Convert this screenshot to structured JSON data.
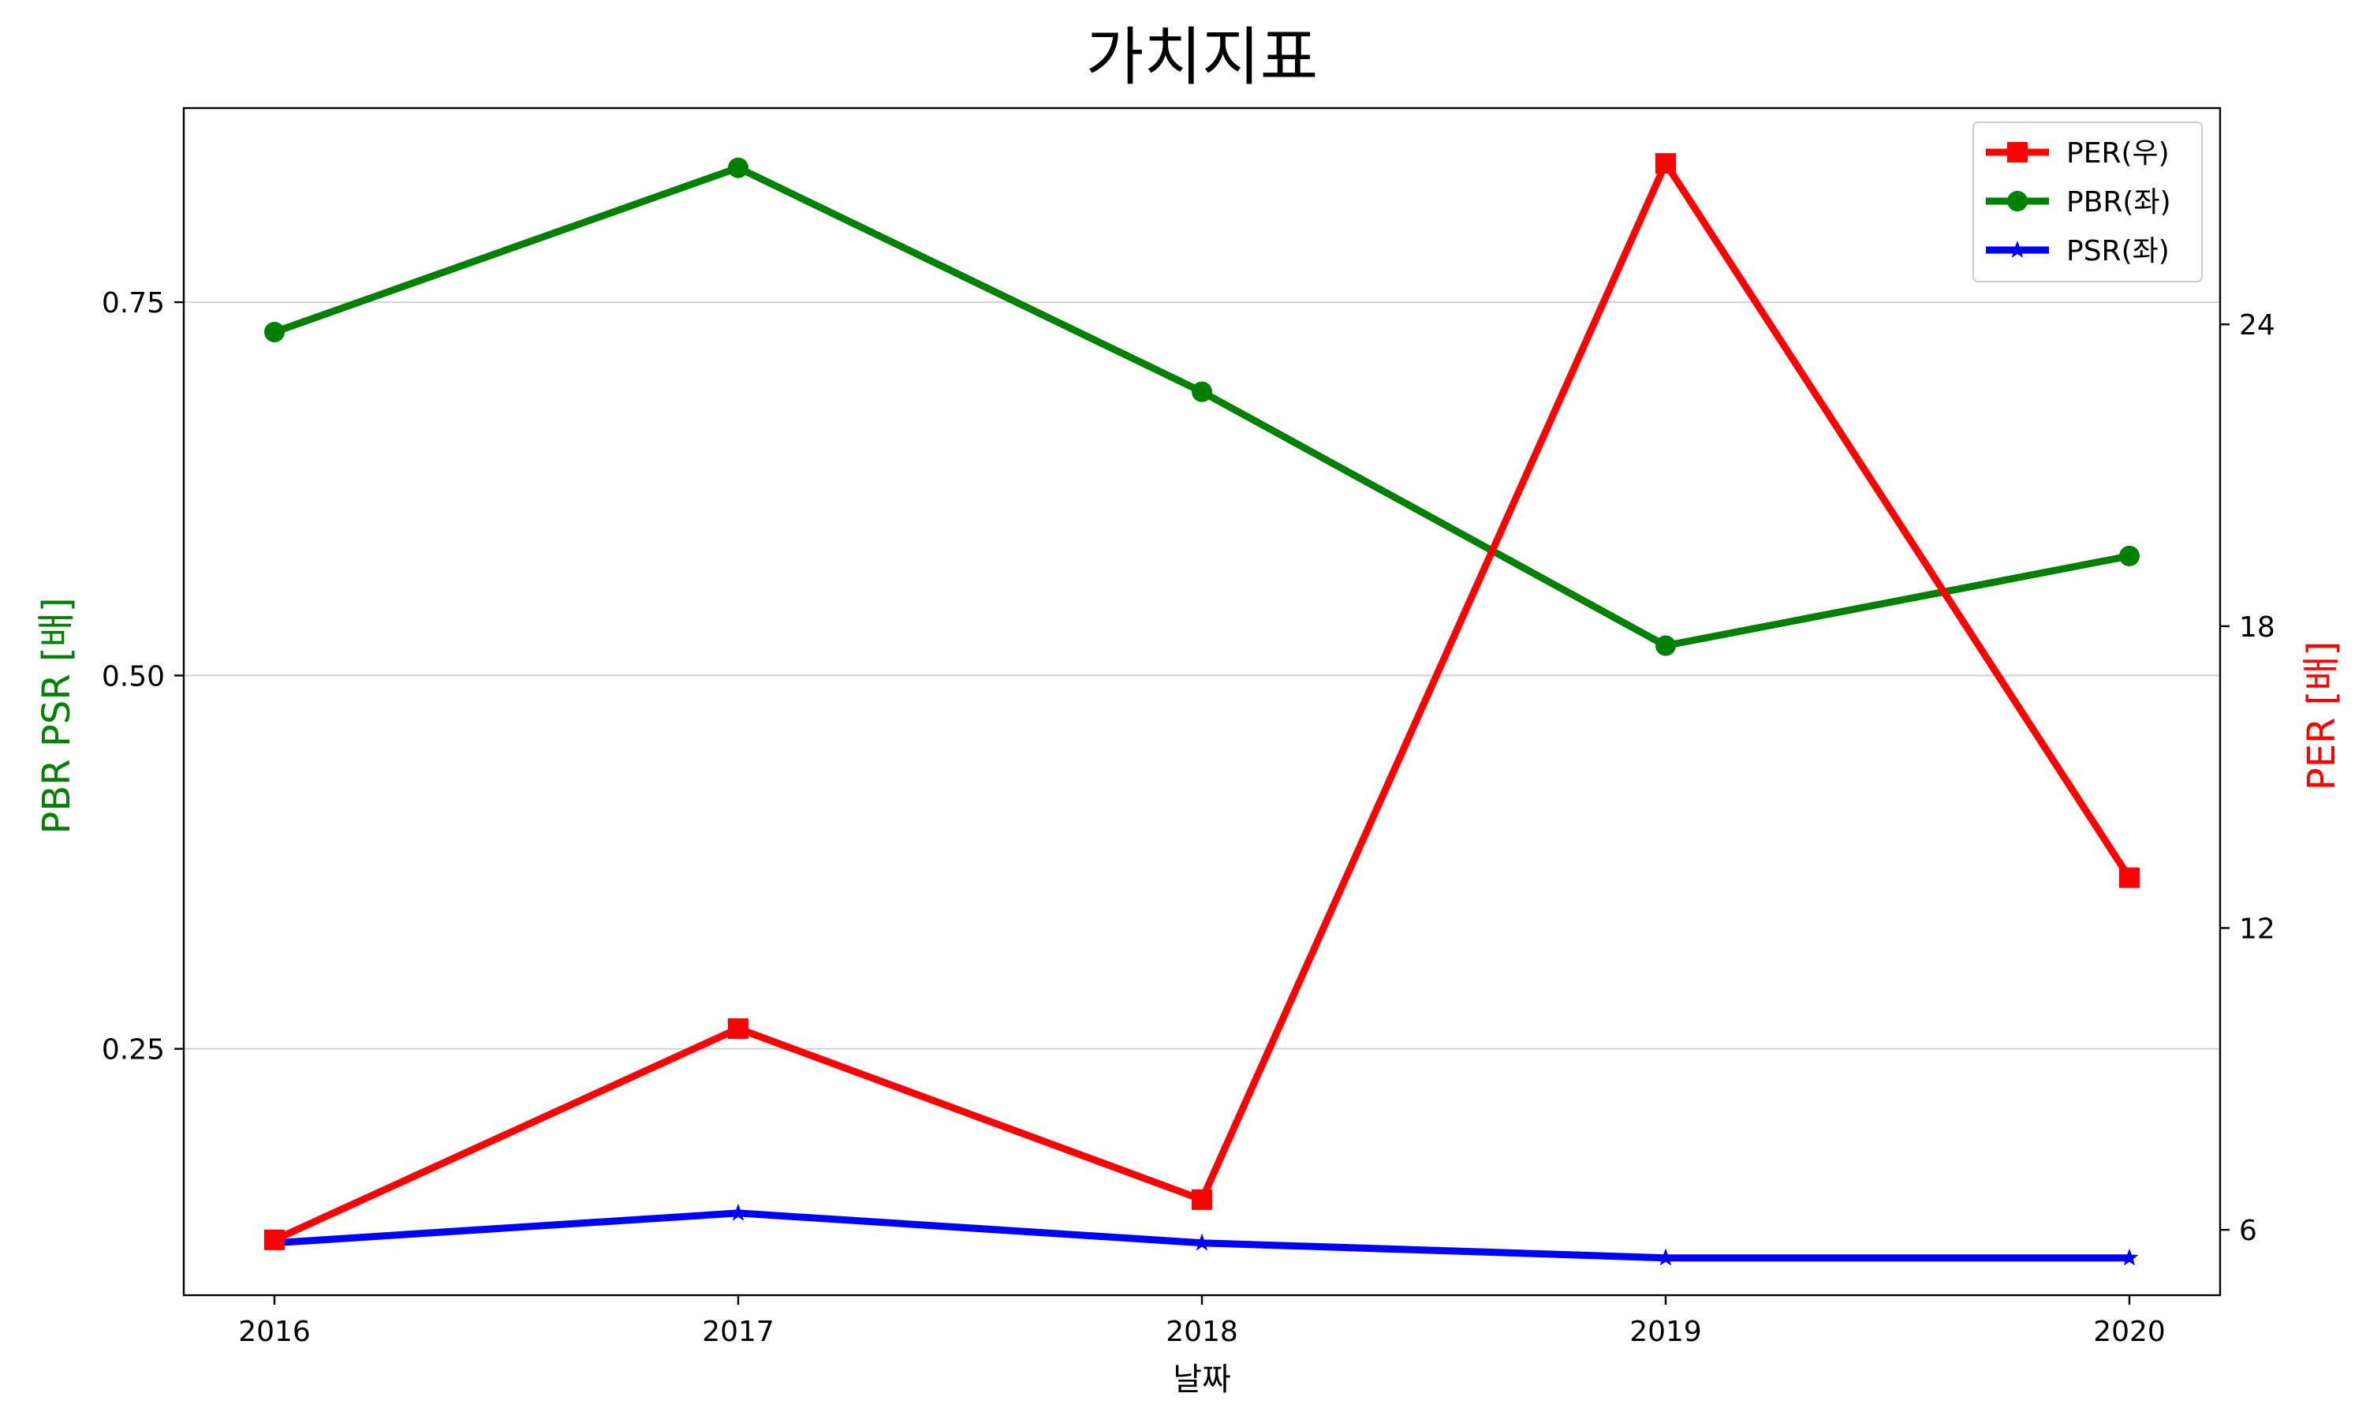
{
  "chart_data": {
    "type": "line",
    "title": "가치지표",
    "xlabel": "날짜",
    "ylabel_left": "PBR PSR [배]",
    "ylabel_right": "PER [배]",
    "categories": [
      "2016",
      "2017",
      "2018",
      "2019",
      "2020"
    ],
    "left_axis": {
      "ylim": [
        0.085,
        0.88
      ],
      "ticks": [
        0.25,
        0.5,
        0.75
      ],
      "tick_labels": [
        "0.25",
        "0.50",
        "0.75"
      ],
      "grid": true
    },
    "right_axis": {
      "ylim": [
        4.7,
        28.3
      ],
      "ticks": [
        6,
        12,
        18,
        24
      ],
      "tick_labels": [
        "6",
        "12",
        "18",
        "24"
      ]
    },
    "series": [
      {
        "name": "PER(우)",
        "axis": "right",
        "color": "#ff0000",
        "marker": "square",
        "values": [
          5.8,
          10.0,
          6.6,
          27.2,
          13.0
        ]
      },
      {
        "name": "PBR(좌)",
        "axis": "left",
        "color": "#008000",
        "marker": "circle",
        "values": [
          0.73,
          0.84,
          0.69,
          0.52,
          0.58
        ]
      },
      {
        "name": "PSR(좌)",
        "axis": "left",
        "color": "#0000ff",
        "marker": "star",
        "values": [
          0.12,
          0.14,
          0.12,
          0.11,
          0.11
        ]
      }
    ],
    "legend_position": "top-right"
  }
}
